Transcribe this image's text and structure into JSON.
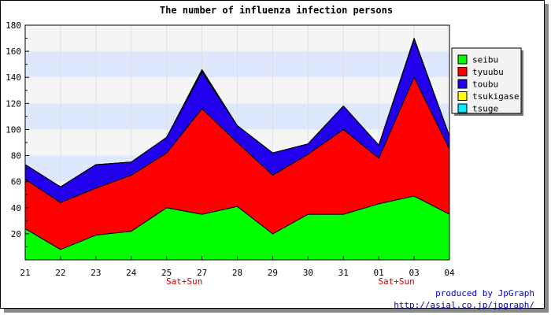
{
  "chart_data": {
    "type": "area",
    "stacked": true,
    "title": "The number of influenza infection persons",
    "categories": [
      "21",
      "22",
      "23",
      "24",
      "25",
      "27",
      "28",
      "29",
      "30",
      "31",
      "01",
      "03",
      "04"
    ],
    "weekend_markers": [
      {
        "after_category": "25",
        "label": "Sat+Sun"
      },
      {
        "after_category": "01",
        "label": "Sat+Sun"
      }
    ],
    "ylim": [
      0,
      180
    ],
    "yticks": [
      20,
      40,
      60,
      80,
      100,
      120,
      140,
      160,
      180
    ],
    "grid": true,
    "band_colors": [
      "#f5f5f5",
      "#dde8fc"
    ],
    "legend_position": "top-right",
    "series": [
      {
        "name": "seibu",
        "color": "#00ff00",
        "values": [
          24,
          8,
          19,
          22,
          40,
          35,
          41,
          20,
          35,
          35,
          43,
          49,
          35
        ]
      },
      {
        "name": "tyuubu",
        "color": "#ff0000",
        "values": [
          38,
          36,
          36,
          43,
          42,
          81,
          49,
          45,
          46,
          65,
          35,
          91,
          50
        ]
      },
      {
        "name": "toubu",
        "color": "#2200ee",
        "values": [
          11,
          12,
          18,
          10,
          12,
          28,
          13,
          17,
          8,
          18,
          10,
          29,
          10
        ]
      },
      {
        "name": "tsukigase",
        "color": "#ffff00",
        "values": [
          0,
          0,
          0,
          0,
          0,
          1,
          0,
          0,
          0,
          0,
          0,
          1,
          0
        ]
      },
      {
        "name": "tsuge",
        "color": "#00eeff",
        "values": [
          0,
          0,
          0,
          0,
          0,
          1,
          0,
          0,
          0,
          0,
          0,
          0,
          0
        ]
      }
    ]
  },
  "footer": {
    "credit_line": "produced by JpGraph",
    "credit_url": "http://asial.co.jp/jpgraph/"
  }
}
